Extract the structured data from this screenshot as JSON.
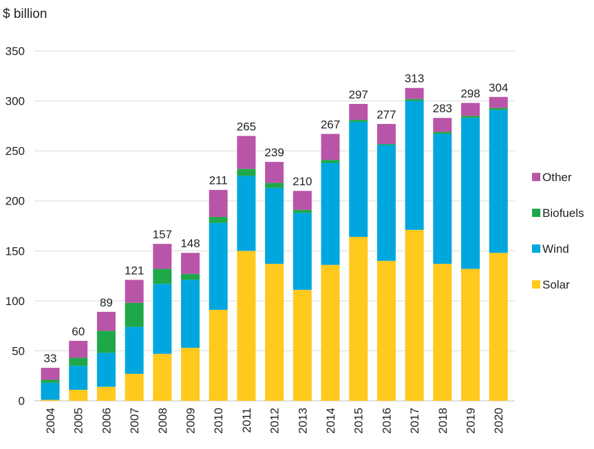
{
  "chart_data": {
    "type": "bar",
    "stacked": true,
    "ylabel": "$ billion",
    "ylim": [
      0,
      350
    ],
    "yticks": [
      0,
      50,
      100,
      150,
      200,
      250,
      300,
      350
    ],
    "grid": true,
    "legend_position": "right",
    "categories": [
      "2004",
      "2005",
      "2006",
      "2007",
      "2008",
      "2009",
      "2010",
      "2011",
      "2012",
      "2013",
      "2014",
      "2015",
      "2016",
      "2017",
      "2018",
      "2019",
      "2020"
    ],
    "totals": [
      33,
      60,
      89,
      121,
      157,
      148,
      211,
      265,
      239,
      210,
      267,
      297,
      277,
      313,
      283,
      298,
      304
    ],
    "series": [
      {
        "name": "Solar",
        "color": "#FFC91D",
        "values": [
          1,
          11,
          14,
          27,
          47,
          53,
          91,
          150,
          137,
          111,
          136,
          164,
          140,
          171,
          137,
          132,
          148
        ]
      },
      {
        "name": "Wind",
        "color": "#00A7DE",
        "values": [
          17,
          24,
          34,
          47,
          70,
          68,
          87,
          75,
          76,
          77,
          102,
          115,
          116,
          129,
          130,
          151,
          143
        ]
      },
      {
        "name": "Biofuels",
        "color": "#1FA84A",
        "values": [
          3,
          8,
          22,
          24,
          15,
          6,
          6,
          7,
          5,
          3,
          3,
          2,
          1,
          2,
          2,
          2,
          2
        ]
      },
      {
        "name": "Other",
        "color": "#B955A8",
        "values": [
          12,
          17,
          19,
          23,
          25,
          21,
          27,
          33,
          21,
          19,
          26,
          16,
          20,
          11,
          14,
          13,
          11
        ]
      }
    ],
    "legend_order": [
      "Other",
      "Biofuels",
      "Wind",
      "Solar"
    ]
  }
}
